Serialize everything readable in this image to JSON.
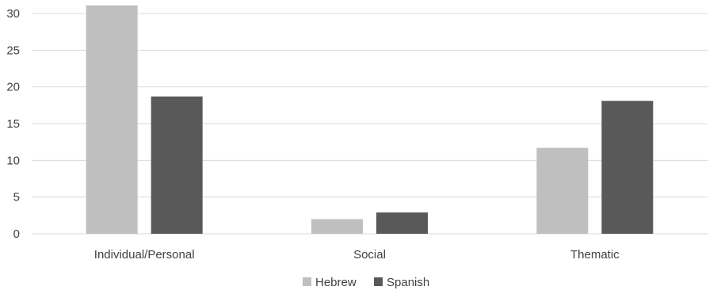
{
  "chart_data": {
    "type": "bar",
    "categories": [
      "Individual/Personal",
      "Social",
      "Thematic"
    ],
    "series": [
      {
        "name": "Hebrew",
        "values": [
          31.1,
          2.0,
          11.7
        ],
        "color": "#bfbfbf"
      },
      {
        "name": "Spanish",
        "values": [
          18.7,
          2.9,
          18.1
        ],
        "color": "#595959"
      }
    ],
    "ylim": [
      0,
      30
    ],
    "yticks": [
      0,
      5,
      10,
      15,
      20,
      25,
      30
    ],
    "grid": true,
    "legend_position": "bottom",
    "title": "",
    "xlabel": "",
    "ylabel": ""
  }
}
